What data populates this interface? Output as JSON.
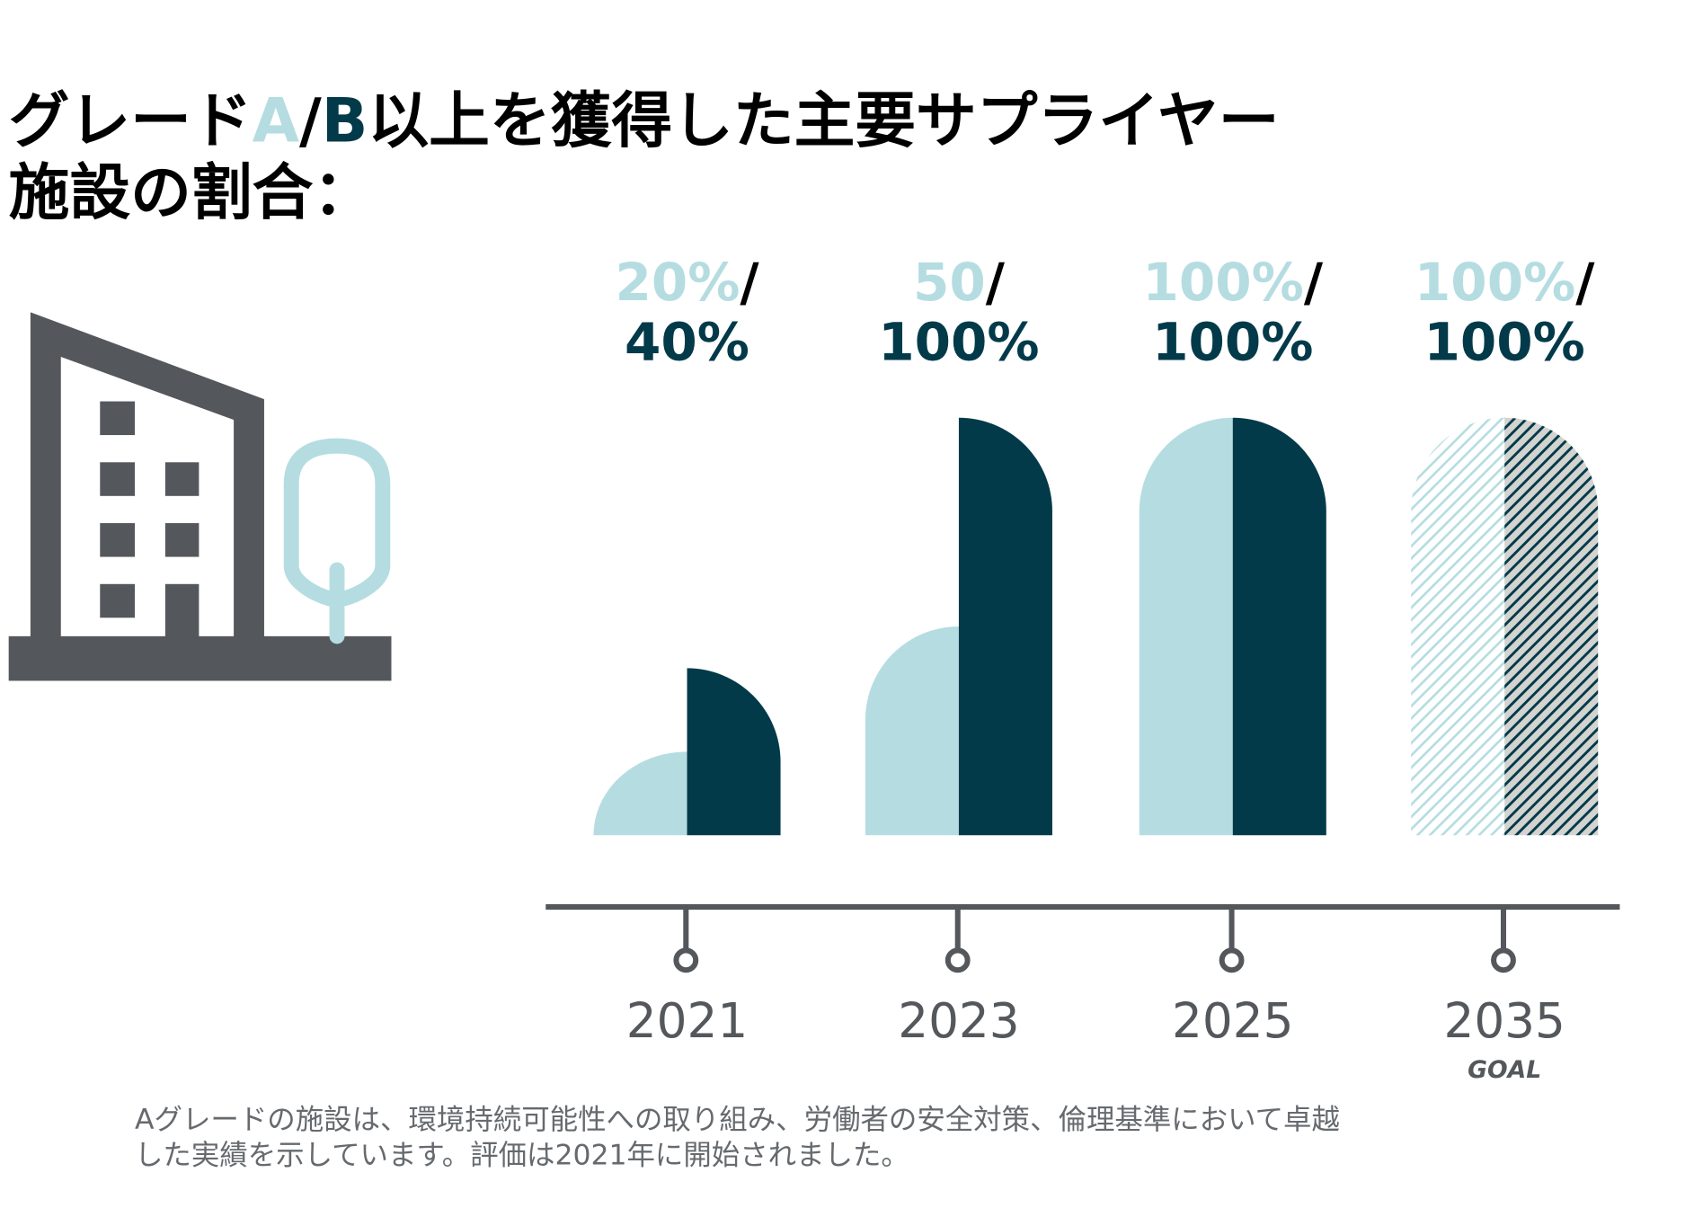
{
  "title": {
    "line1_pre": "グレード",
    "grade_a": "A",
    "slash": "/",
    "grade_b": "B",
    "line1_post": "以上を獲得した主要サプライヤー",
    "line2": "施設の割合："
  },
  "colors": {
    "grade_a": "#b5dde1",
    "grade_b": "#023a4a",
    "axis": "#54575b",
    "icon": "#54575b",
    "goal_fill": "#d3d3d0"
  },
  "icons": [
    "building-icon",
    "tree-icon"
  ],
  "chart_data": {
    "type": "bar",
    "categories": [
      "2021",
      "2023",
      "2025",
      "2035"
    ],
    "series": [
      {
        "key": "grade_a",
        "values": [
          20,
          50,
          100,
          100
        ]
      },
      {
        "key": "grade_b",
        "values": [
          40,
          100,
          100,
          100
        ]
      }
    ],
    "ylim": [
      0,
      100
    ],
    "grid": false,
    "projected": [
      false,
      false,
      false,
      true
    ],
    "value_labels": [
      {
        "a": "20%",
        "slash": "/",
        "b": "40%"
      },
      {
        "a": "50",
        "slash": "/",
        "b": "100%"
      },
      {
        "a": "100%",
        "slash": "/",
        "b": "100%"
      },
      {
        "a": "100%",
        "slash": "/",
        "b": "100%"
      }
    ],
    "goal_label": "GOAL"
  },
  "footnote": {
    "line1": "Aグレードの施設は、環境持続可能性への取り組み、労働者の安全対策、倫理基準において卓越",
    "line2": "した実績を示しています。評価は2021年に開始されました。"
  }
}
